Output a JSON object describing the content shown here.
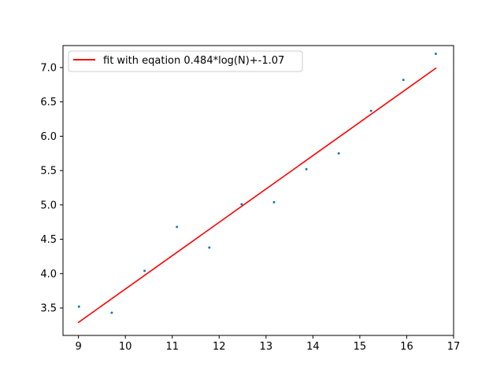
{
  "chart_data": {
    "type": "scatter",
    "title": "",
    "xlabel": "",
    "ylabel": "",
    "xlim": [
      8.67,
      17.0
    ],
    "ylim": [
      3.1,
      7.32
    ],
    "xticks": [
      9,
      10,
      11,
      12,
      13,
      14,
      15,
      16,
      17
    ],
    "yticks": [
      3.5,
      4.0,
      4.5,
      5.0,
      5.5,
      6.0,
      6.5,
      7.0
    ],
    "xtick_labels": [
      "9",
      "10",
      "11",
      "12",
      "13",
      "14",
      "15",
      "16",
      "17"
    ],
    "ytick_labels": [
      "3.5",
      "4.0",
      "4.5",
      "5.0",
      "5.5",
      "6.0",
      "6.5",
      "7.0"
    ],
    "grid": false,
    "legend_location": "upper left",
    "series": [
      {
        "kind": "scatter",
        "color": "#1f77b4",
        "points": [
          {
            "x": 9.01,
            "y": 3.52
          },
          {
            "x": 9.71,
            "y": 3.43
          },
          {
            "x": 10.41,
            "y": 4.04
          },
          {
            "x": 11.1,
            "y": 4.68
          },
          {
            "x": 11.79,
            "y": 4.38
          },
          {
            "x": 12.48,
            "y": 5.01
          },
          {
            "x": 13.17,
            "y": 5.04
          },
          {
            "x": 13.86,
            "y": 5.52
          },
          {
            "x": 14.55,
            "y": 5.75
          },
          {
            "x": 15.24,
            "y": 6.37
          },
          {
            "x": 15.93,
            "y": 6.82
          },
          {
            "x": 16.62,
            "y": 7.2
          }
        ]
      },
      {
        "kind": "line",
        "name": "fit with eqation 0.484*log(N)+-1.07",
        "color": "#ff0000",
        "points": [
          {
            "x": 9.0,
            "y": 3.29
          },
          {
            "x": 16.62,
            "y": 6.99
          }
        ]
      }
    ]
  }
}
